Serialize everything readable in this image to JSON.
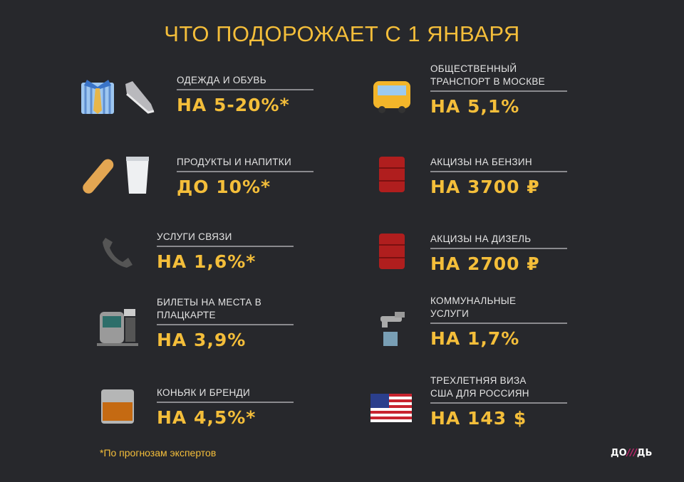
{
  "title": "ЧТО ПОДОРОЖАЕТ С 1 ЯНВАРЯ",
  "left": [
    {
      "label": "ОДЕЖДА И ОБУВЬ",
      "value": "НА 5-20%*",
      "icons": [
        "shirt-tie-icon",
        "sneaker-icon"
      ]
    },
    {
      "label": "ПРОДУКТЫ И НАПИТКИ",
      "value": "ДО 10%*",
      "icons": [
        "bread-icon",
        "milk-glass-icon"
      ]
    },
    {
      "label": "УСЛУГИ СВЯЗИ",
      "value": "НА 1,6%*",
      "icons": [
        "telephone-icon"
      ]
    },
    {
      "label": "БИЛЕТЫ НА МЕСТА В ПЛАЦКАРТЕ",
      "value": "НА 3,9%",
      "icons": [
        "train-icon"
      ]
    },
    {
      "label": "КОНЬЯК И БРЕНДИ",
      "value": "НА 4,5%*",
      "icons": [
        "whiskey-glass-icon"
      ]
    }
  ],
  "right": [
    {
      "label": "ОБЩЕСТВЕННЫЙ ТРАНСПОРТ В МОСКВЕ",
      "value": "НА 5,1%",
      "icons": [
        "bus-icon"
      ]
    },
    {
      "label": "АКЦИЗЫ НА БЕНЗИН",
      "value": "НА 3700 ₽",
      "icons": [
        "oil-barrel-icon"
      ]
    },
    {
      "label": "АКЦИЗЫ НА ДИЗЕЛЬ",
      "value": "НА 2700 ₽",
      "icons": [
        "oil-barrel-icon"
      ]
    },
    {
      "label": "КОММУНАЛЬНЫЕ УСЛУГИ",
      "value": "НА 1,7%",
      "icons": [
        "water-tap-icon"
      ]
    },
    {
      "label": "ТРЕХЛЕТНЯЯ ВИЗА США ДЛЯ РОССИЯН",
      "value": "НА 143 $",
      "icons": [
        "us-flag-icon"
      ]
    }
  ],
  "footnote": "*По прогнозам экспертов",
  "logo": "ДОЖДЬ",
  "colors": {
    "background": "#27282c",
    "accent": "#f4be3a"
  }
}
